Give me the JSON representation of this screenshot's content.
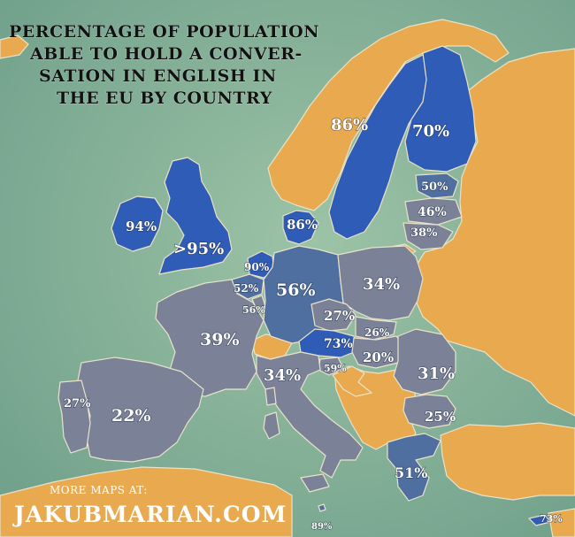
{
  "title_lines": [
    "PERCENTAGE OF POPULATION",
    "ABLE TO HOLD A CONVER-",
    "SATION IN ENGLISH IN",
    "THE EU BY COUNTRY"
  ],
  "footer": {
    "more_maps": "MORE MAPS AT:",
    "site": "JAKUBMARIAN.COM"
  },
  "colors": {
    "sea": "#7fae96",
    "non_eu": "#e8a94f",
    "high": "#2f5cb6",
    "mid": "#4f6fa0",
    "low": "#7b8297"
  },
  "labels": {
    "ireland": "94%",
    "uk": ">95%",
    "sweden": "86%",
    "finland": "70%",
    "estonia": "50%",
    "latvia": "46%",
    "lithuania": "38%",
    "denmark": "86%",
    "netherlands": "90%",
    "belgium": "52%",
    "luxembourg": "56%",
    "germany": "56%",
    "poland": "34%",
    "czechia": "27%",
    "slovakia": "26%",
    "austria": "73%",
    "hungary": "20%",
    "slovenia": "59%",
    "france": "39%",
    "italy": "34%",
    "romania": "31%",
    "bulgaria": "25%",
    "portugal": "27%",
    "spain": "22%",
    "greece": "51%",
    "malta": "89%",
    "cyprus": "73%"
  }
}
